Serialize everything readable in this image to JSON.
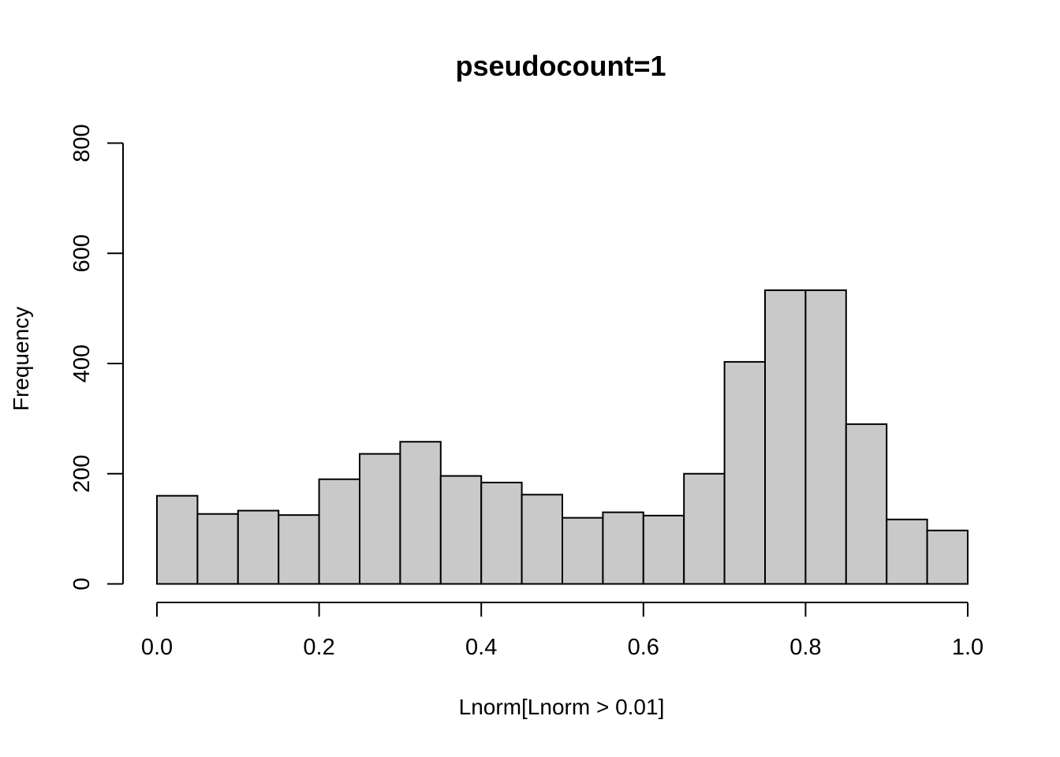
{
  "figure": {
    "background": "#ffffff"
  },
  "chart_data": {
    "type": "bar",
    "subtype": "histogram",
    "title": "pseudocount=1",
    "xlabel": "Lnorm[Lnorm > 0.01]",
    "ylabel": "Frequency",
    "bin_edges": [
      0.0,
      0.05,
      0.1,
      0.15,
      0.2,
      0.25,
      0.3,
      0.35,
      0.4,
      0.45,
      0.5,
      0.55,
      0.6,
      0.65,
      0.7,
      0.75,
      0.8,
      0.85,
      0.9,
      0.95,
      1.0
    ],
    "values": [
      160,
      127,
      133,
      125,
      190,
      236,
      258,
      196,
      184,
      162,
      120,
      130,
      124,
      200,
      403,
      533,
      533,
      290,
      117,
      97
    ],
    "xlim": [
      0.0,
      1.0
    ],
    "ylim": [
      0,
      800
    ],
    "x_ticks": [
      {
        "pos": 0.0,
        "label": "0.0"
      },
      {
        "pos": 0.2,
        "label": "0.2"
      },
      {
        "pos": 0.4,
        "label": "0.4"
      },
      {
        "pos": 0.6,
        "label": "0.6"
      },
      {
        "pos": 0.8,
        "label": "0.8"
      },
      {
        "pos": 1.0,
        "label": "1.0"
      }
    ],
    "y_ticks": [
      {
        "pos": 0,
        "label": "0"
      },
      {
        "pos": 200,
        "label": "200"
      },
      {
        "pos": 400,
        "label": "400"
      },
      {
        "pos": 600,
        "label": "600"
      },
      {
        "pos": 800,
        "label": "800"
      }
    ],
    "grid": false,
    "legend": null,
    "colors": {
      "bar_fill": "#c9c9c9",
      "bar_border": "#000000",
      "axis": "#000000",
      "text": "#000000"
    }
  }
}
